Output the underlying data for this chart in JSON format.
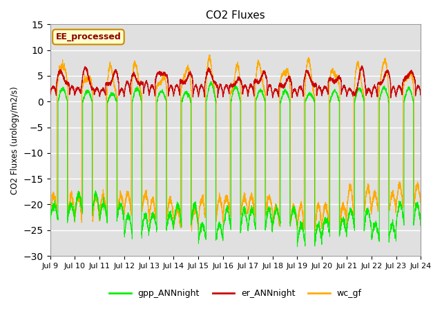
{
  "title": "CO2 Fluxes",
  "ylabel": "CO2 Fluxes (urology/m2/s)",
  "xlabel": "",
  "ylim": [
    -30,
    15
  ],
  "yticks": [
    -30,
    -25,
    -20,
    -15,
    -10,
    -5,
    0,
    5,
    10,
    15
  ],
  "annotation": "EE_processed",
  "background_color": "#e0e0e0",
  "figure_bg": "#ffffff",
  "legend_labels": [
    "gpp_ANNnight",
    "er_ANNnight",
    "wc_gf"
  ],
  "line_colors": [
    "#00ee00",
    "#cc0000",
    "#ffaa00"
  ],
  "start_day": 9,
  "end_day": 24,
  "n_points": 4000
}
